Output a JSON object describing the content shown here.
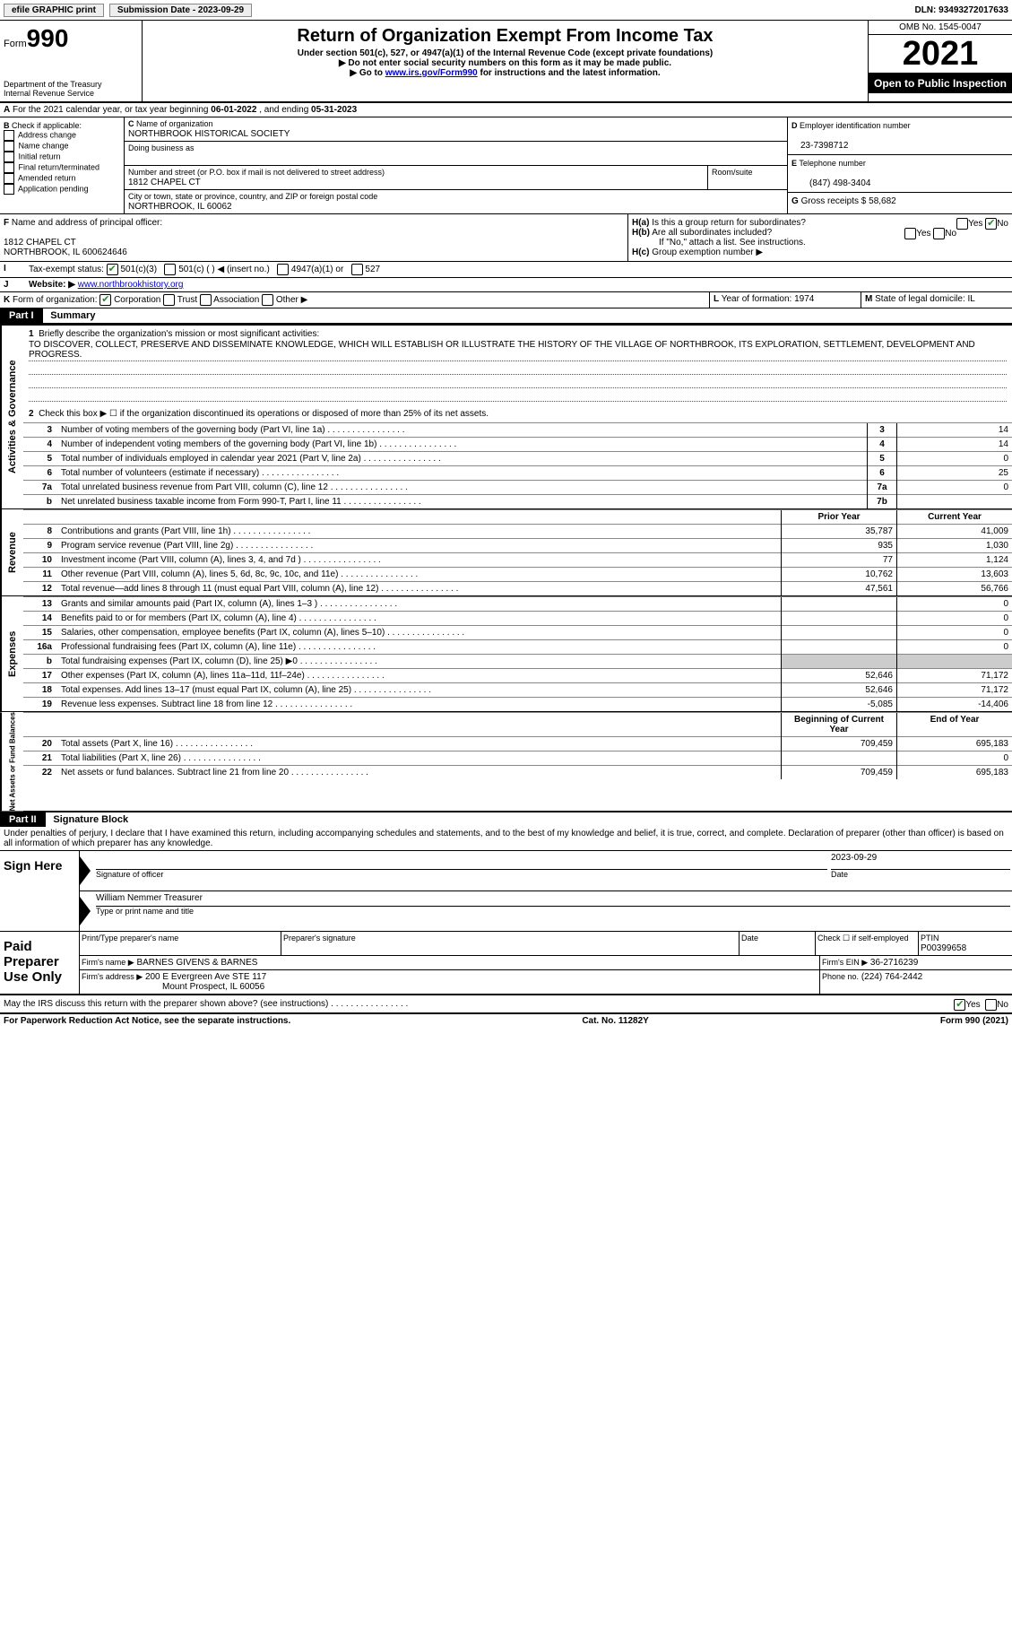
{
  "topbar": {
    "efile": "efile GRAPHIC print",
    "submission_label": "Submission Date - 2023-09-29",
    "dln": "DLN: 93493272017633"
  },
  "header": {
    "form_label": "Form",
    "form_no": "990",
    "dept": "Department of the Treasury",
    "irs": "Internal Revenue Service",
    "title": "Return of Organization Exempt From Income Tax",
    "subtitle": "Under section 501(c), 527, or 4947(a)(1) of the Internal Revenue Code (except private foundations)",
    "note1": "Do not enter social security numbers on this form as it may be made public.",
    "note2_pre": "Go to ",
    "note2_link": "www.irs.gov/Form990",
    "note2_post": " for instructions and the latest information.",
    "omb": "OMB No. 1545-0047",
    "year": "2021",
    "open": "Open to Public Inspection"
  },
  "A": {
    "text_pre": "For the 2021 calendar year, or tax year beginning ",
    "begin": "06-01-2022",
    "mid": " , and ending ",
    "end": "05-31-2023"
  },
  "B": {
    "label": "Check if applicable:",
    "opts": [
      "Address change",
      "Name change",
      "Initial return",
      "Final return/terminated",
      "Amended return",
      "Application pending"
    ]
  },
  "C": {
    "name_label": "Name of organization",
    "name": "NORTHBROOK HISTORICAL SOCIETY",
    "dba_label": "Doing business as",
    "dba": "",
    "street_label": "Number and street (or P.O. box if mail is not delivered to street address)",
    "room_label": "Room/suite",
    "street": "1812 CHAPEL CT",
    "city_label": "City or town, state or province, country, and ZIP or foreign postal code",
    "city": "NORTHBROOK, IL  60062"
  },
  "D": {
    "label": "Employer identification number",
    "val": "23-7398712"
  },
  "E": {
    "label": "Telephone number",
    "val": "(847) 498-3404"
  },
  "G": {
    "label": "Gross receipts $",
    "val": "58,682"
  },
  "F": {
    "label": "Name and address of principal officer:",
    "addr1": "1812 CHAPEL CT",
    "addr2": "NORTHBROOK, IL  600624646"
  },
  "H": {
    "a": "Is this a group return for subordinates?",
    "b": "Are all subordinates included?",
    "b_note": "If \"No,\" attach a list. See instructions.",
    "c": "Group exemption number ▶",
    "yes": "Yes",
    "no": "No"
  },
  "I": {
    "label": "Tax-exempt status:",
    "opt1": "501(c)(3)",
    "opt2": "501(c) (  ) ◀ (insert no.)",
    "opt3": "4947(a)(1) or",
    "opt4": "527"
  },
  "J": {
    "label": "Website: ▶",
    "val": "www.northbrookhistory.org"
  },
  "K": {
    "label": "Form of organization:",
    "opts": [
      "Corporation",
      "Trust",
      "Association",
      "Other ▶"
    ]
  },
  "L": {
    "label": "Year of formation:",
    "val": "1974"
  },
  "M": {
    "label": "State of legal domicile:",
    "val": "IL"
  },
  "part1": {
    "hdr": "Part I",
    "title": "Summary",
    "q1_label": "Briefly describe the organization's mission or most significant activities:",
    "q1_text": "TO DISCOVER, COLLECT, PRESERVE AND DISSEMINATE KNOWLEDGE, WHICH WILL ESTABLISH OR ILLUSTRATE THE HISTORY OF THE VILLAGE OF NORTHBROOK, ITS EXPLORATION, SETTLEMENT, DEVELOPMENT AND PROGRESS.",
    "q2": "Check this box ▶ ☐ if the organization discontinued its operations or disposed of more than 25% of its net assets.",
    "lines": [
      {
        "n": "3",
        "t": "Number of voting members of the governing body (Part VI, line 1a)",
        "box": "3",
        "v": "14"
      },
      {
        "n": "4",
        "t": "Number of independent voting members of the governing body (Part VI, line 1b)",
        "box": "4",
        "v": "14"
      },
      {
        "n": "5",
        "t": "Total number of individuals employed in calendar year 2021 (Part V, line 2a)",
        "box": "5",
        "v": "0"
      },
      {
        "n": "6",
        "t": "Total number of volunteers (estimate if necessary)",
        "box": "6",
        "v": "25"
      },
      {
        "n": "7a",
        "t": "Total unrelated business revenue from Part VIII, column (C), line 12",
        "box": "7a",
        "v": "0"
      },
      {
        "n": "b",
        "t": "Net unrelated business taxable income from Form 990-T, Part I, line 11",
        "box": "7b",
        "v": ""
      }
    ],
    "colhdr_prior": "Prior Year",
    "colhdr_curr": "Current Year",
    "revenue": [
      {
        "n": "8",
        "t": "Contributions and grants (Part VIII, line 1h)",
        "p": "35,787",
        "c": "41,009"
      },
      {
        "n": "9",
        "t": "Program service revenue (Part VIII, line 2g)",
        "p": "935",
        "c": "1,030"
      },
      {
        "n": "10",
        "t": "Investment income (Part VIII, column (A), lines 3, 4, and 7d )",
        "p": "77",
        "c": "1,124"
      },
      {
        "n": "11",
        "t": "Other revenue (Part VIII, column (A), lines 5, 6d, 8c, 9c, 10c, and 11e)",
        "p": "10,762",
        "c": "13,603"
      },
      {
        "n": "12",
        "t": "Total revenue—add lines 8 through 11 (must equal Part VIII, column (A), line 12)",
        "p": "47,561",
        "c": "56,766"
      }
    ],
    "expenses": [
      {
        "n": "13",
        "t": "Grants and similar amounts paid (Part IX, column (A), lines 1–3 )",
        "p": "",
        "c": "0"
      },
      {
        "n": "14",
        "t": "Benefits paid to or for members (Part IX, column (A), line 4)",
        "p": "",
        "c": "0"
      },
      {
        "n": "15",
        "t": "Salaries, other compensation, employee benefits (Part IX, column (A), lines 5–10)",
        "p": "",
        "c": "0"
      },
      {
        "n": "16a",
        "t": "Professional fundraising fees (Part IX, column (A), line 11e)",
        "p": "",
        "c": "0"
      },
      {
        "n": "b",
        "t": "Total fundraising expenses (Part IX, column (D), line 25) ▶0",
        "p": "shade",
        "c": "shade"
      },
      {
        "n": "17",
        "t": "Other expenses (Part IX, column (A), lines 11a–11d, 11f–24e)",
        "p": "52,646",
        "c": "71,172"
      },
      {
        "n": "18",
        "t": "Total expenses. Add lines 13–17 (must equal Part IX, column (A), line 25)",
        "p": "52,646",
        "c": "71,172"
      },
      {
        "n": "19",
        "t": "Revenue less expenses. Subtract line 18 from line 12",
        "p": "-5,085",
        "c": "-14,406"
      }
    ],
    "colhdr_beg": "Beginning of Current Year",
    "colhdr_end": "End of Year",
    "netassets": [
      {
        "n": "20",
        "t": "Total assets (Part X, line 16)",
        "p": "709,459",
        "c": "695,183"
      },
      {
        "n": "21",
        "t": "Total liabilities (Part X, line 26)",
        "p": "",
        "c": "0"
      },
      {
        "n": "22",
        "t": "Net assets or fund balances. Subtract line 21 from line 20",
        "p": "709,459",
        "c": "695,183"
      }
    ],
    "side_ag": "Activities & Governance",
    "side_rev": "Revenue",
    "side_exp": "Expenses",
    "side_net": "Net Assets or Fund Balances"
  },
  "part2": {
    "hdr": "Part II",
    "title": "Signature Block",
    "decl": "Under penalties of perjury, I declare that I have examined this return, including accompanying schedules and statements, and to the best of my knowledge and belief, it is true, correct, and complete. Declaration of preparer (other than officer) is based on all information of which preparer has any knowledge.",
    "sign_here": "Sign Here",
    "sig_officer": "Signature of officer",
    "sig_date": "Date",
    "sig_date_val": "2023-09-29",
    "officer_name": "William Nemmer  Treasurer",
    "type_name": "Type or print name and title",
    "paid": "Paid Preparer Use Only",
    "prep_name_label": "Print/Type preparer's name",
    "prep_sig_label": "Preparer's signature",
    "date_label": "Date",
    "check_if": "Check ☐ if self-employed",
    "ptin_label": "PTIN",
    "ptin": "P00399658",
    "firm_name_label": "Firm's name    ▶",
    "firm_name": "BARNES GIVENS & BARNES",
    "firm_ein_label": "Firm's EIN ▶",
    "firm_ein": "36-2716239",
    "firm_addr_label": "Firm's address ▶",
    "firm_addr1": "200 E Evergreen Ave STE 117",
    "firm_addr2": "Mount Prospect, IL  60056",
    "phone_label": "Phone no.",
    "phone": "(224) 764-2442",
    "discuss": "May the IRS discuss this return with the preparer shown above? (see instructions)"
  },
  "footer": {
    "left": "For Paperwork Reduction Act Notice, see the separate instructions.",
    "mid": "Cat. No. 11282Y",
    "right": "Form 990 (2021)"
  },
  "colors": {
    "link": "#0000cc",
    "checked": "#2a8a2a"
  }
}
